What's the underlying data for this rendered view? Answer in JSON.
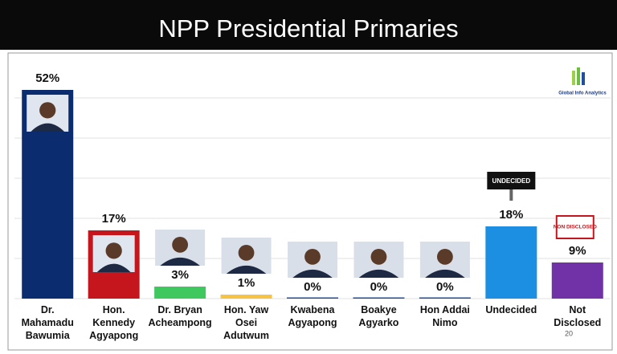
{
  "chart_data": {
    "type": "bar",
    "title": "NPP Presidential Primaries",
    "categories": [
      "Dr. Mahamadu Bawumia",
      "Hon. Kennedy Agyapong",
      "Dr. Bryan Acheampong",
      "Hon. Yaw Osei Adutwum",
      "Kwabena Agyapong",
      "Boakye Agyarko",
      "Hon Addai Nimo",
      "Undecided",
      "Not Disclosed"
    ],
    "values": [
      52,
      17,
      3,
      1,
      0,
      0,
      0,
      18,
      9
    ],
    "value_labels": [
      "52%",
      "17%",
      "3%",
      "1%",
      "0%",
      "0%",
      "0%",
      "18%",
      "9%"
    ],
    "colors": [
      "#0b2c6f",
      "#c4161c",
      "#3fc85e",
      "#f6c342",
      "#1f4fa0",
      "#1f4fa0",
      "#1f4fa0",
      "#1c8fe3",
      "#7132a8"
    ],
    "ylim": [
      0,
      60
    ],
    "yticks": [
      0,
      10,
      20,
      30,
      40,
      50
    ],
    "grid": true,
    "annotations": [
      "UNDECIDED",
      "NON DISCLOSED"
    ],
    "logo_text": "Global Info Analytics",
    "page_number": "20"
  }
}
